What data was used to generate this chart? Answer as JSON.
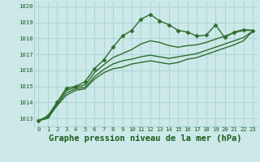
{
  "title": "Graphe pression niveau de la mer (hPa)",
  "background_color": "#cce8e8",
  "grid_color": "#aad4d4",
  "line_color": "#2d6e2d",
  "text_color": "#1a5c1a",
  "xlim": [
    -0.5,
    23.5
  ],
  "ylim": [
    1012.5,
    1020.3
  ],
  "yticks": [
    1013,
    1014,
    1015,
    1016,
    1017,
    1018,
    1019,
    1020
  ],
  "xticks": [
    0,
    1,
    2,
    3,
    4,
    5,
    6,
    7,
    8,
    9,
    10,
    11,
    12,
    13,
    14,
    15,
    16,
    17,
    18,
    19,
    20,
    21,
    22,
    23
  ],
  "series": [
    [
      1012.85,
      1013.15,
      1014.0,
      1014.9,
      1015.0,
      1015.3,
      1016.1,
      1016.65,
      1017.45,
      1018.15,
      1018.5,
      1019.2,
      1019.5,
      1019.1,
      1018.85,
      1018.5,
      1018.4,
      1018.15,
      1018.2,
      1018.85,
      1018.05,
      1018.4,
      1018.55,
      1018.5
    ],
    [
      1012.85,
      1013.1,
      1014.0,
      1014.75,
      1014.95,
      1015.1,
      1015.85,
      1016.35,
      1016.8,
      1017.05,
      1017.3,
      1017.65,
      1017.85,
      1017.75,
      1017.55,
      1017.45,
      1017.55,
      1017.6,
      1017.75,
      1017.95,
      1018.15,
      1018.35,
      1018.5,
      1018.5
    ],
    [
      1012.85,
      1013.05,
      1013.9,
      1014.6,
      1014.85,
      1014.95,
      1015.6,
      1016.05,
      1016.4,
      1016.6,
      1016.7,
      1016.85,
      1016.95,
      1016.85,
      1016.75,
      1016.85,
      1016.95,
      1017.05,
      1017.25,
      1017.45,
      1017.65,
      1017.85,
      1018.05,
      1018.45
    ],
    [
      1012.85,
      1013.0,
      1013.8,
      1014.45,
      1014.75,
      1014.85,
      1015.45,
      1015.85,
      1016.1,
      1016.2,
      1016.4,
      1016.5,
      1016.6,
      1016.5,
      1016.4,
      1016.5,
      1016.7,
      1016.8,
      1017.0,
      1017.2,
      1017.4,
      1017.6,
      1017.85,
      1018.45
    ]
  ],
  "marker": "D",
  "marker_size": 2.5,
  "linewidth": 1.0,
  "title_fontsize": 7.5,
  "tick_fontsize": 5.2,
  "ylabel_fontsize": 5.2
}
